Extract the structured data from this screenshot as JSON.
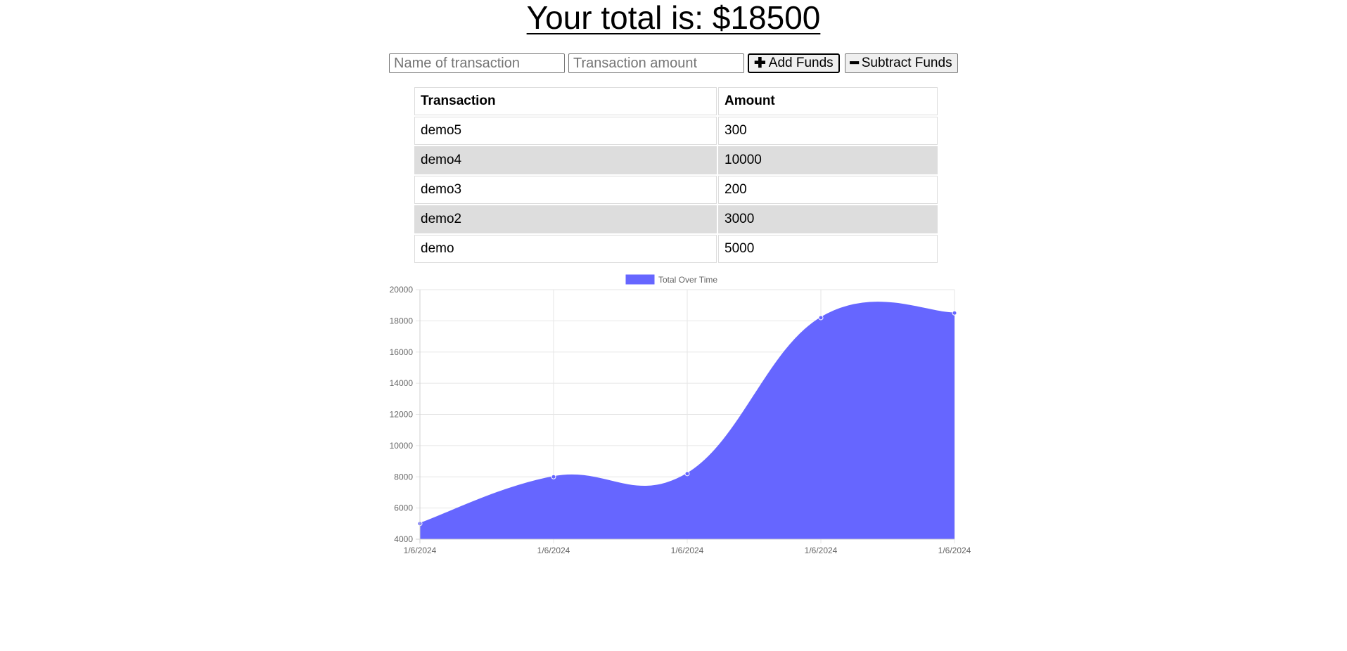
{
  "header": {
    "total_text": "Your total is: $18500"
  },
  "form": {
    "name_placeholder": "Name of transaction",
    "amount_placeholder": "Transaction amount",
    "add_label": "Add Funds",
    "subtract_label": "Subtract Funds"
  },
  "table": {
    "headers": [
      "Transaction",
      "Amount"
    ],
    "rows": [
      [
        "demo5",
        "300"
      ],
      [
        "demo4",
        "10000"
      ],
      [
        "demo3",
        "200"
      ],
      [
        "demo2",
        "3000"
      ],
      [
        "demo",
        "5000"
      ]
    ]
  },
  "chart_data": {
    "type": "area",
    "title": "",
    "xlabel": "",
    "ylabel": "",
    "x": [
      "1/6/2024",
      "1/6/2024",
      "1/6/2024",
      "1/6/2024",
      "1/6/2024"
    ],
    "series": [
      {
        "name": "Total Over Time",
        "values": [
          5000,
          8000,
          8200,
          18200,
          18500
        ],
        "color": "#6666ff"
      }
    ],
    "ylim": [
      4000,
      20000
    ],
    "yticks": [
      4000,
      6000,
      8000,
      10000,
      12000,
      14000,
      16000,
      18000,
      20000
    ],
    "grid": true,
    "legend": "top-center"
  }
}
